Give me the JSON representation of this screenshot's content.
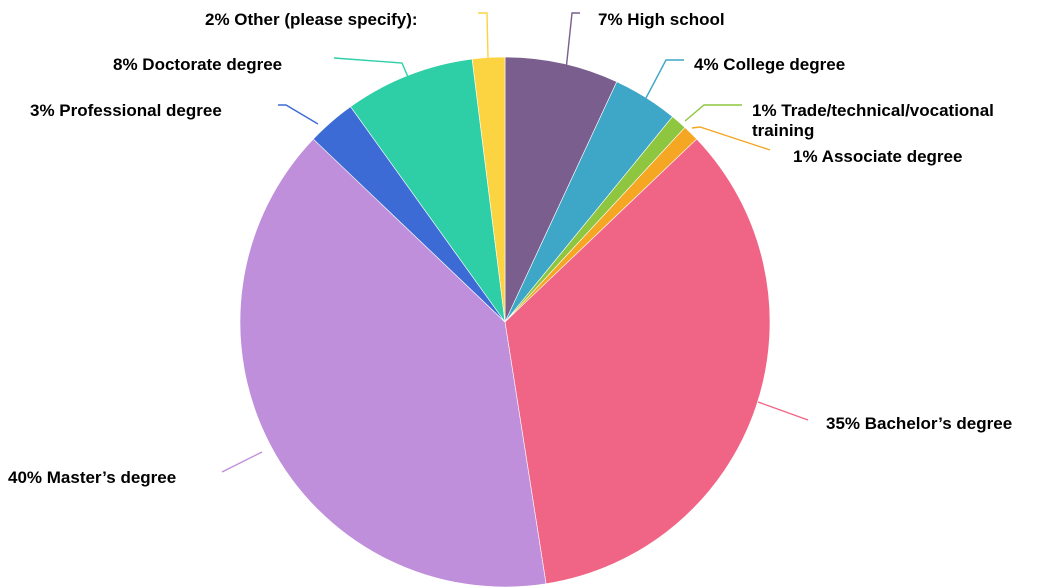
{
  "chart_data": {
    "type": "pie",
    "start_angle_deg": 0,
    "direction": "clockwise",
    "slices": [
      {
        "label": "High school",
        "value": 7,
        "display": "7% High school",
        "color": "#7a5f8e"
      },
      {
        "label": "College degree",
        "value": 4,
        "display": "4% College degree",
        "color": "#3ea6c6"
      },
      {
        "label": "Trade/technical/vocational training",
        "value": 1,
        "display": "1% Trade/technical/vocational training",
        "display_lines": [
          "1% Trade/technical/vocational",
          "training"
        ],
        "color": "#8ec63f"
      },
      {
        "label": "Associate degree",
        "value": 1,
        "display": "1% Associate degree",
        "color": "#f5a623"
      },
      {
        "label": "Bachelor’s degree",
        "value": 35,
        "display": "35% Bachelor’s degree",
        "color": "#f06585"
      },
      {
        "label": "Master’s degree",
        "value": 40,
        "display": "40% Master’s degree",
        "color": "#bf8fdb"
      },
      {
        "label": "Professional degree",
        "value": 3,
        "display": "3% Professional degree",
        "color": "#3d6bd6"
      },
      {
        "label": "Doctorate degree",
        "value": 8,
        "display": "8% Doctorate degree",
        "color": "#2ecfa6"
      },
      {
        "label": "Other (please specify):",
        "value": 2,
        "display": "2% Other (please specify):",
        "color": "#fcd340"
      }
    ]
  }
}
